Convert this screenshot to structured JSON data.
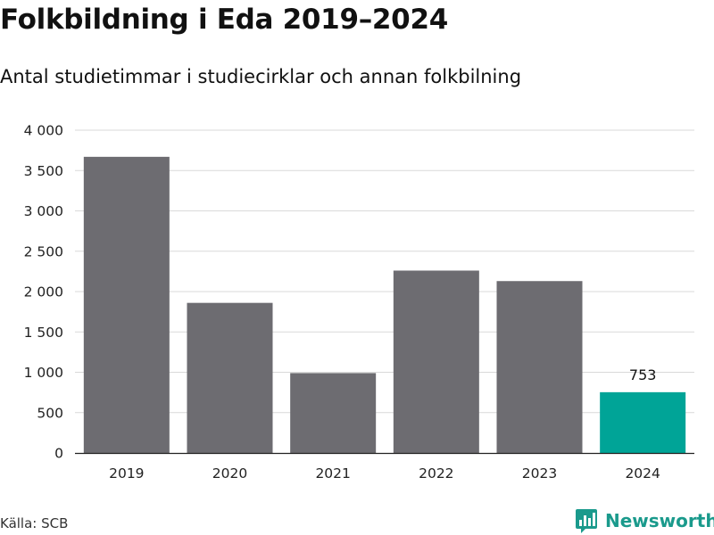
{
  "header": {
    "title": "Folkbildning i Eda 2019–2024",
    "subtitle": "Antal studietimmar i studiecirklar och annan folkbilning"
  },
  "footer": {
    "source": "Källa: SCB",
    "brand": "Newsworthy",
    "brand_icon": "bar-chart-speech-bubble-icon"
  },
  "colors": {
    "bar": "#6d6c71",
    "highlight": "#00a497",
    "grid": "#d9d9d9",
    "brand": "#1a9a8c"
  },
  "chart_data": {
    "type": "bar",
    "title": "Folkbildning i Eda 2019–2024",
    "subtitle": "Antal studietimmar i studiecirklar och annan folkbilning",
    "categories": [
      "2019",
      "2020",
      "2021",
      "2022",
      "2023",
      "2024"
    ],
    "values": [
      3670,
      1860,
      990,
      2260,
      2130,
      753
    ],
    "highlight_index": 5,
    "data_labels": [
      {
        "index": 5,
        "text": "753"
      }
    ],
    "ylim": [
      0,
      4000
    ],
    "yticks": [
      0,
      500,
      1000,
      1500,
      2000,
      2500,
      3000,
      3500,
      4000
    ],
    "ytick_labels": [
      "0",
      "500",
      "1 000",
      "1 500",
      "2 000",
      "2 500",
      "3 000",
      "3 500",
      "4 000"
    ],
    "xlabel": "",
    "ylabel": "",
    "grid": true,
    "legend": "none"
  }
}
